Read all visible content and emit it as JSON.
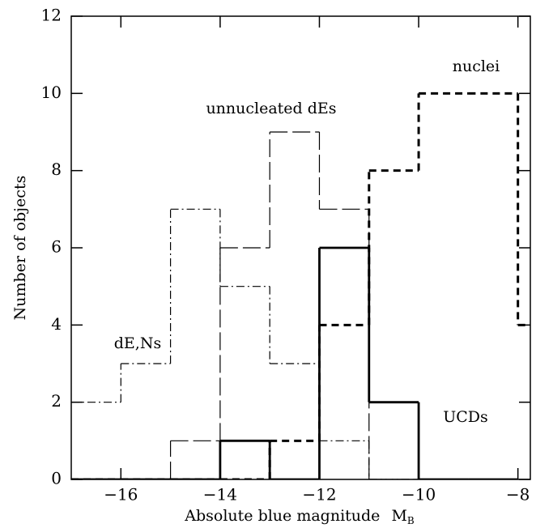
{
  "chart_data": {
    "type": "histogram",
    "xlabel": "Absolute blue magnitude",
    "xlabel_symbol": "M",
    "xlabel_subscript": "B",
    "ylabel": "Number of objects",
    "xlim": [
      -17,
      -7.75
    ],
    "ylim": [
      0,
      12
    ],
    "xticks": [
      {
        "value": -16,
        "label": "−16"
      },
      {
        "value": -14,
        "label": "−14"
      },
      {
        "value": -12,
        "label": "−12"
      },
      {
        "value": -10,
        "label": "−10"
      },
      {
        "value": -8,
        "label": "−8"
      }
    ],
    "yticks": [
      0,
      2,
      4,
      6,
      8,
      10,
      12
    ],
    "series": [
      {
        "name": "dE,Ns",
        "color": "#000000",
        "line_style": "dashdot",
        "bins": [
          -17,
          -16,
          -15,
          -14,
          -13,
          -12,
          -11,
          -10,
          -9,
          -8
        ],
        "values": [
          2,
          3,
          7,
          5,
          3,
          1,
          0,
          0,
          0
        ]
      },
      {
        "name": "unnucleated dEs",
        "color": "#000000",
        "line_style": "longdash",
        "bins": [
          -17,
          -16,
          -15,
          -14,
          -13,
          -12,
          -11,
          -10,
          -9,
          -8
        ],
        "values": [
          0,
          0,
          1,
          6,
          9,
          7,
          0,
          0,
          0
        ]
      },
      {
        "name": "nuclei",
        "color": "#000000",
        "line_style": "dashed",
        "bins": [
          -17,
          -16,
          -15,
          -14,
          -13,
          -12,
          -11,
          -10,
          -9,
          -8,
          -7
        ],
        "values": [
          0,
          0,
          0,
          0,
          1,
          4,
          8,
          10,
          10,
          4
        ]
      },
      {
        "name": "UCDs",
        "color": "#000000",
        "line_style": "solid",
        "bins": [
          -17,
          -16,
          -15,
          -14,
          -13,
          -12,
          -11,
          -10,
          -9,
          -8
        ],
        "values": [
          0,
          0,
          0,
          1,
          0,
          6,
          2,
          0,
          0
        ]
      }
    ]
  }
}
